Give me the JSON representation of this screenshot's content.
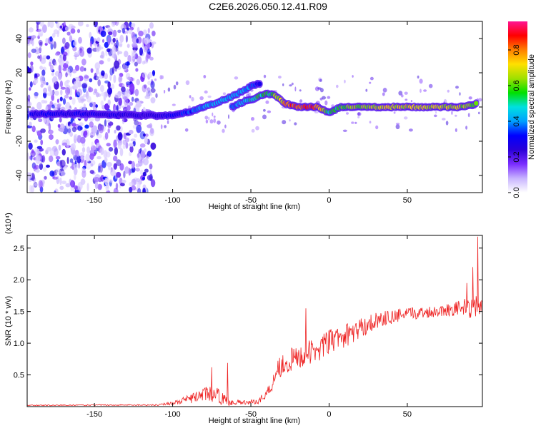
{
  "title": "C2E6.2026.050.12.41.R09",
  "colors": {
    "snr_line": "#ee2222",
    "frame": "#000000",
    "colormap": [
      "#ffffff",
      "#c8b4ff",
      "#7a2cff",
      "#2a00d8",
      "#0000ff",
      "#00a0ff",
      "#00e0e0",
      "#00e000",
      "#a0e000",
      "#ffe000",
      "#ff8000",
      "#ff0000",
      "#ff1493"
    ]
  },
  "chart_data": [
    {
      "type": "heatmap",
      "name": "spectrogram",
      "xlabel": "Height of straight line (km)",
      "ylabel": "Frequency (Hz)",
      "xlim": [
        -193,
        98
      ],
      "ylim": [
        -50,
        50
      ],
      "xticks": [
        -150,
        -100,
        -50,
        0,
        50
      ],
      "xtick_labels": [
        "-150",
        "-100",
        "-50",
        "0",
        "50"
      ],
      "yticks": [
        -40,
        -20,
        0,
        20,
        40
      ],
      "ytick_labels": [
        "-40",
        "-20",
        "0",
        "20",
        "40"
      ],
      "colorbar": {
        "label": "Normalized spectral amplitude",
        "range": [
          0.0,
          0.96
        ],
        "ticks": [
          0.0,
          0.2,
          0.4,
          0.6,
          0.8
        ],
        "tick_labels": [
          "0.0",
          "0.2",
          "0.4",
          "0.6",
          "0.8"
        ]
      },
      "noise_region_x": [
        -193,
        -112
      ],
      "ridge_main": [
        {
          "x": -190,
          "y": -4,
          "a": 0.3
        },
        {
          "x": -160,
          "y": -4,
          "a": 0.3
        },
        {
          "x": -112,
          "y": -5,
          "a": 0.25
        },
        {
          "x": -100,
          "y": -5,
          "a": 0.3
        },
        {
          "x": -90,
          "y": -3,
          "a": 0.35
        },
        {
          "x": -80,
          "y": 0,
          "a": 0.4
        },
        {
          "x": -70,
          "y": 3,
          "a": 0.45
        },
        {
          "x": -60,
          "y": 7,
          "a": 0.45
        },
        {
          "x": -50,
          "y": 12,
          "a": 0.4
        },
        {
          "x": -44,
          "y": 14,
          "a": 0.3
        }
      ],
      "ridge_secondary": [
        {
          "x": -62,
          "y": 0,
          "a": 0.35
        },
        {
          "x": -55,
          "y": 3,
          "a": 0.45
        },
        {
          "x": -48,
          "y": 5,
          "a": 0.55
        },
        {
          "x": -40,
          "y": 8,
          "a": 0.55
        },
        {
          "x": -35,
          "y": 7,
          "a": 0.6
        },
        {
          "x": -28,
          "y": 2,
          "a": 0.8
        },
        {
          "x": -20,
          "y": 0,
          "a": 0.9
        },
        {
          "x": -8,
          "y": 0,
          "a": 0.9
        },
        {
          "x": 0,
          "y": -3,
          "a": 0.55
        },
        {
          "x": 8,
          "y": 0,
          "a": 0.6
        },
        {
          "x": 30,
          "y": 0,
          "a": 0.7
        },
        {
          "x": 60,
          "y": 0,
          "a": 0.72
        },
        {
          "x": 85,
          "y": 0,
          "a": 0.68
        },
        {
          "x": 95,
          "y": 2,
          "a": 0.6
        }
      ]
    },
    {
      "type": "line",
      "name": "snr",
      "xlabel": "Height of straight line (km)",
      "ylabel": "SNR (10 * v/v)",
      "yscale_label": "(x10⁴)",
      "xlim": [
        -193,
        98
      ],
      "ylim": [
        0,
        27000
      ],
      "xticks": [
        -150,
        -100,
        -50,
        0,
        50
      ],
      "xtick_labels": [
        "-150",
        "-100",
        "-50",
        "0",
        "50"
      ],
      "yticks": [
        5000,
        10000,
        15000,
        20000,
        25000
      ],
      "ytick_labels": [
        "0.5",
        "1.0",
        "1.5",
        "2.0",
        "2.5"
      ],
      "envelope": [
        {
          "x": -193,
          "base": 200,
          "amp": 150
        },
        {
          "x": -110,
          "base": 250,
          "amp": 200
        },
        {
          "x": -98,
          "base": 600,
          "amp": 700
        },
        {
          "x": -88,
          "base": 1200,
          "amp": 1500
        },
        {
          "x": -78,
          "base": 2000,
          "amp": 2200
        },
        {
          "x": -70,
          "base": 1500,
          "amp": 2500
        },
        {
          "x": -65,
          "base": 700,
          "amp": 1200
        },
        {
          "x": -55,
          "base": 600,
          "amp": 700
        },
        {
          "x": -45,
          "base": 800,
          "amp": 800
        },
        {
          "x": -38,
          "base": 2500,
          "amp": 2500
        },
        {
          "x": -33,
          "base": 6000,
          "amp": 3500
        },
        {
          "x": -25,
          "base": 7000,
          "amp": 4000
        },
        {
          "x": -10,
          "base": 8500,
          "amp": 4000
        },
        {
          "x": 0,
          "base": 10000,
          "amp": 4000
        },
        {
          "x": 15,
          "base": 11500,
          "amp": 3500
        },
        {
          "x": 30,
          "base": 13500,
          "amp": 2500
        },
        {
          "x": 50,
          "base": 14500,
          "amp": 2000
        },
        {
          "x": 70,
          "base": 15000,
          "amp": 1800
        },
        {
          "x": 85,
          "base": 15500,
          "amp": 2500
        },
        {
          "x": 92,
          "base": 15500,
          "amp": 4000
        },
        {
          "x": 98,
          "base": 15500,
          "amp": 2500
        }
      ],
      "spikes": [
        {
          "x": -75,
          "y": 6200
        },
        {
          "x": -65,
          "y": 6900
        },
        {
          "x": -15,
          "y": 15500
        },
        {
          "x": 88,
          "y": 19500
        },
        {
          "x": 92,
          "y": 22000
        },
        {
          "x": 95,
          "y": 26800
        }
      ]
    }
  ]
}
